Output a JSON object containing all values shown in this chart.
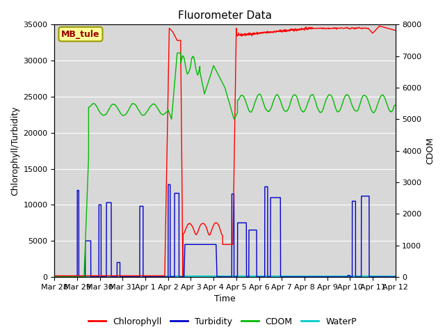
{
  "title": "Fluorometer Data",
  "xlabel": "Time",
  "ylabel_left": "Chlorophyll/Turbidity",
  "ylabel_right": "CDOM",
  "ylim_left": [
    0,
    35000
  ],
  "ylim_right": [
    0,
    8000
  ],
  "xlim": [
    0,
    15
  ],
  "x_tick_labels": [
    "Mar 28",
    "Mar 29",
    "Mar 30",
    "Mar 31",
    "Apr 1",
    "Apr 2",
    "Apr 3",
    "Apr 4",
    "Apr 5",
    "Apr 6",
    "Apr 7",
    "Apr 8",
    "Apr 9",
    "Apr 10",
    "Apr 11",
    "Apr 12"
  ],
  "x_tick_positions": [
    0,
    1,
    2,
    3,
    4,
    5,
    6,
    7,
    8,
    9,
    10,
    11,
    12,
    13,
    14,
    15
  ],
  "background_color": "#ffffff",
  "plot_bg_color": "#d8d8d8",
  "grid_color": "#ffffff",
  "annotation_text": "MB_tule",
  "annotation_box_color": "#ffff99",
  "annotation_box_edge": "#999900",
  "annotation_text_color": "#990000",
  "colors": {
    "Chlorophyll": "#ff0000",
    "Turbidity": "#0000cc",
    "CDOM": "#00bb00",
    "WaterP": "#00cccc"
  },
  "legend_labels": [
    "Chlorophyll",
    "Turbidity",
    "CDOM",
    "WaterP"
  ],
  "figsize": [
    6.4,
    4.8
  ],
  "dpi": 100,
  "cdom_scale": 4.375
}
